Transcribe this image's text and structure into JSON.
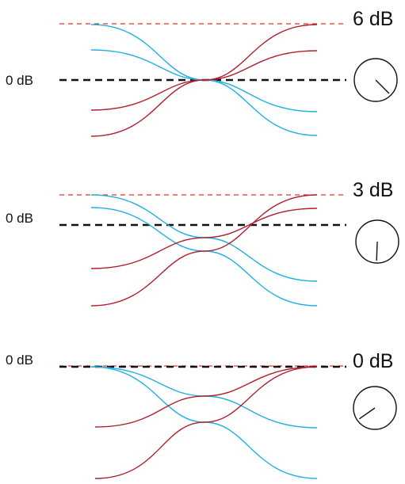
{
  "colors": {
    "cyan": "#1fb0e0",
    "red": "#b01e2d",
    "dashed_red": "#e8342f",
    "dashed_black": "#111111",
    "knob": "#111111"
  },
  "panels": [
    {
      "zero_label": "0 dB",
      "level_label": "6 dB",
      "knob_pointer_angle_deg": 135
    },
    {
      "zero_label": "0 dB",
      "level_label": "3 dB",
      "knob_pointer_angle_deg": 182
    },
    {
      "zero_label": "0 dB",
      "level_label": "0 dB",
      "knob_pointer_angle_deg": 235
    }
  ]
}
